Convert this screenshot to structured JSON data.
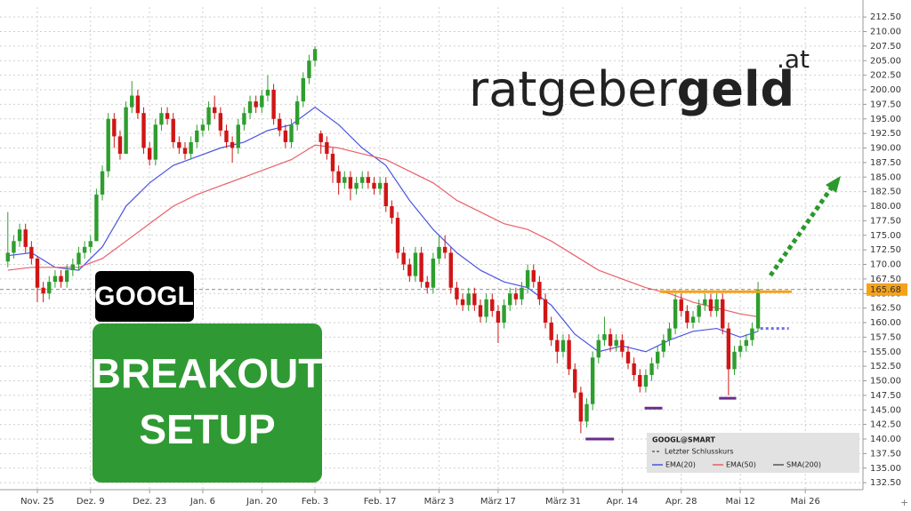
{
  "chart_data": {
    "type": "candlestick",
    "brand": {
      "name_light": "ratgeber",
      "name_bold": "geld",
      "suffix": ".at"
    },
    "ticker_badge": "GOOGL",
    "setup_badge": [
      "BREAKOUT",
      "SETUP"
    ],
    "legend": {
      "title": "GOOGL@SMART",
      "last_close_label": "Letzter Schlusskurs"
    },
    "last_close": 165.68,
    "up_color": "#2e9e2e",
    "down_color": "#d01515",
    "grid": true,
    "categories": [
      null,
      null,
      null,
      null,
      null,
      "Nov. 25",
      null,
      null,
      null,
      null,
      null,
      null,
      null,
      null,
      "Dez. 9",
      null,
      null,
      null,
      null,
      null,
      null,
      null,
      null,
      null,
      "Dez. 23",
      null,
      null,
      null,
      null,
      null,
      null,
      null,
      null,
      "Jan. 6",
      null,
      null,
      null,
      null,
      null,
      null,
      null,
      null,
      null,
      "Jan. 20",
      null,
      null,
      null,
      null,
      null,
      null,
      null,
      null,
      "Feb. 3",
      null,
      null,
      null,
      null,
      null,
      null,
      null,
      null,
      null,
      null,
      "Feb. 17",
      null,
      null,
      null,
      null,
      null,
      null,
      null,
      null,
      null,
      "März 3",
      null,
      null,
      null,
      null,
      null,
      null,
      null,
      null,
      null,
      "März 17",
      null,
      null,
      null,
      null,
      null,
      null,
      null,
      null,
      null,
      null,
      "März 31",
      null,
      null,
      null,
      null,
      null,
      null,
      null,
      null,
      null,
      "Apr. 14",
      null,
      null,
      null,
      null,
      null,
      null,
      null,
      null,
      null,
      "Apr. 28",
      null,
      null,
      null,
      null,
      null,
      null,
      null,
      null,
      null,
      "Mai 12",
      null,
      null,
      null,
      null,
      null,
      null,
      null,
      null,
      null,
      null,
      "Mai 26",
      null,
      null,
      null,
      null,
      null,
      null,
      null,
      null,
      null
    ],
    "ohlc": [
      [
        170.5,
        179,
        169.5,
        172
      ],
      [
        172,
        175,
        171,
        174
      ],
      [
        174,
        177,
        173,
        176
      ],
      [
        176,
        177,
        172,
        173
      ],
      [
        173,
        174,
        170,
        171
      ],
      [
        171,
        171.5,
        163.5,
        166
      ],
      [
        166,
        167,
        163.5,
        165
      ],
      [
        165,
        168,
        164,
        167
      ],
      [
        167,
        169,
        166,
        168
      ],
      [
        168,
        169,
        166,
        167
      ],
      [
        167,
        170,
        166,
        169
      ],
      [
        169,
        171,
        168,
        170
      ],
      [
        170,
        173,
        169,
        172
      ],
      [
        172,
        174,
        171,
        173
      ],
      [
        173,
        175,
        172,
        174
      ],
      [
        174,
        183,
        174,
        182
      ],
      [
        182,
        187,
        181,
        186
      ],
      [
        186,
        196,
        185,
        195
      ],
      [
        195,
        196,
        190,
        192
      ],
      [
        192,
        193,
        188,
        189
      ],
      [
        189,
        198,
        189,
        197
      ],
      [
        197,
        201.5,
        196,
        199
      ],
      [
        199,
        200,
        195,
        196
      ],
      [
        196,
        197,
        189,
        190
      ],
      [
        190,
        191,
        187,
        188
      ],
      [
        188,
        195,
        187,
        194
      ],
      [
        194,
        197,
        193,
        196
      ],
      [
        196,
        197,
        194,
        195
      ],
      [
        195,
        196,
        190,
        191
      ],
      [
        191,
        192,
        189,
        190
      ],
      [
        190,
        191,
        188,
        189
      ],
      [
        189,
        192,
        188,
        191
      ],
      [
        191,
        194,
        190,
        193
      ],
      [
        193,
        195,
        192,
        194
      ],
      [
        194,
        198,
        193,
        197
      ],
      [
        197,
        199,
        195,
        196
      ],
      [
        196,
        197,
        192,
        193
      ],
      [
        193,
        194,
        190,
        191
      ],
      [
        191,
        192,
        187.5,
        190
      ],
      [
        190,
        195,
        189,
        194
      ],
      [
        194,
        197,
        193,
        196
      ],
      [
        196,
        199,
        195,
        198
      ],
      [
        198,
        199,
        196,
        197
      ],
      [
        197,
        200,
        196,
        199
      ],
      [
        199,
        202.5,
        198,
        200
      ],
      [
        200,
        201,
        194,
        195
      ],
      [
        195,
        196,
        192,
        193
      ],
      [
        193,
        194,
        190,
        191
      ],
      [
        191,
        195,
        190,
        194
      ],
      [
        194,
        199,
        193,
        198
      ],
      [
        198,
        203,
        197,
        202
      ],
      [
        202,
        206,
        201,
        205
      ],
      [
        205,
        207.5,
        204,
        207
      ],
      [
        192.5,
        193,
        189,
        191
      ],
      [
        191,
        192,
        188,
        189
      ],
      [
        189,
        190,
        184,
        186
      ],
      [
        186,
        187,
        182,
        184
      ],
      [
        184,
        186,
        183,
        185
      ],
      [
        185,
        186,
        181,
        183
      ],
      [
        183,
        185,
        182,
        184
      ],
      [
        184,
        186,
        183,
        185
      ],
      [
        185,
        186,
        183,
        184
      ],
      [
        184,
        185,
        182,
        183
      ],
      [
        183,
        185,
        182,
        184
      ],
      [
        184,
        185,
        179,
        180
      ],
      [
        180,
        181,
        177,
        178
      ],
      [
        178,
        179,
        171,
        172
      ],
      [
        172,
        173,
        169,
        170
      ],
      [
        170,
        171,
        167,
        168
      ],
      [
        168,
        173,
        167,
        172
      ],
      [
        172,
        173,
        166,
        167
      ],
      [
        167,
        168,
        165,
        166
      ],
      [
        166,
        172,
        165,
        171
      ],
      [
        171,
        175,
        170,
        173
      ],
      [
        173,
        175,
        171,
        172
      ],
      [
        172,
        173,
        165,
        166
      ],
      [
        166,
        167,
        163,
        164
      ],
      [
        164,
        165,
        162,
        163
      ],
      [
        163,
        166,
        162,
        165
      ],
      [
        165,
        166,
        162,
        163
      ],
      [
        163,
        164,
        160,
        161
      ],
      [
        161,
        165,
        160,
        164
      ],
      [
        164,
        165,
        161,
        162
      ],
      [
        162,
        163,
        156.5,
        160
      ],
      [
        160,
        164,
        159,
        163
      ],
      [
        163,
        166,
        162,
        165
      ],
      [
        165,
        166,
        163,
        164
      ],
      [
        164,
        167,
        163,
        166
      ],
      [
        166,
        170,
        165,
        169
      ],
      [
        169,
        170,
        166,
        167
      ],
      [
        167,
        168,
        163,
        164
      ],
      [
        164,
        165,
        159,
        160
      ],
      [
        160,
        161,
        156,
        157
      ],
      [
        157,
        158,
        153,
        155
      ],
      [
        155,
        158,
        154,
        157
      ],
      [
        157,
        158,
        151,
        152
      ],
      [
        152,
        153,
        147,
        148
      ],
      [
        148,
        149,
        141,
        143
      ],
      [
        143,
        147,
        142,
        146
      ],
      [
        146,
        155,
        145,
        154
      ],
      [
        154,
        158,
        153,
        157
      ],
      [
        157,
        161,
        156,
        158
      ],
      [
        158,
        159,
        155,
        156
      ],
      [
        156,
        158,
        155,
        157
      ],
      [
        157,
        158,
        154,
        155
      ],
      [
        155,
        156,
        152,
        153
      ],
      [
        153,
        154,
        150,
        151
      ],
      [
        151,
        152,
        148,
        149
      ],
      [
        149,
        152,
        148,
        151
      ],
      [
        151,
        154,
        150,
        153
      ],
      [
        153,
        156,
        152,
        155
      ],
      [
        155,
        158,
        154,
        157
      ],
      [
        157,
        160,
        156,
        159
      ],
      [
        159,
        165,
        158,
        164
      ],
      [
        164,
        165,
        161,
        162
      ],
      [
        162,
        163,
        159,
        160
      ],
      [
        160,
        162,
        159,
        161
      ],
      [
        161,
        164,
        160,
        163
      ],
      [
        163,
        165,
        162,
        164
      ],
      [
        164,
        165,
        161,
        162
      ],
      [
        162,
        165,
        161,
        164
      ],
      [
        164,
        165,
        158,
        159
      ],
      [
        159,
        160,
        147.5,
        152
      ],
      [
        152,
        156,
        151,
        155
      ],
      [
        155,
        157,
        154,
        156
      ],
      [
        156,
        158,
        155,
        157
      ],
      [
        157,
        160,
        156,
        159
      ],
      [
        159,
        167,
        158.5,
        165.68
      ],
      null,
      null,
      null,
      null,
      null,
      null,
      null,
      null,
      null,
      null,
      null,
      null,
      null,
      null,
      null,
      null,
      null
    ],
    "series": [
      {
        "name": "EMA(20)",
        "color": "#4a55e0",
        "x": [
          0,
          4,
          8,
          12,
          16,
          20,
          24,
          28,
          32,
          36,
          40,
          44,
          48,
          52,
          56,
          60,
          64,
          68,
          72,
          76,
          80,
          84,
          88,
          92,
          96,
          100,
          104,
          108,
          112,
          116,
          120,
          124,
          127
        ],
        "values": [
          171.5,
          172,
          169.5,
          169,
          173,
          180,
          184,
          187,
          188.5,
          190,
          191,
          193,
          194,
          197,
          194,
          190,
          187,
          181,
          176,
          172,
          169,
          167,
          166,
          163,
          158,
          155,
          156,
          155,
          157,
          158.5,
          159,
          157.5,
          158.5
        ]
      },
      {
        "name": "EMA(50)",
        "color": "#e8606a",
        "x": [
          0,
          4,
          8,
          12,
          16,
          20,
          24,
          28,
          32,
          36,
          40,
          44,
          48,
          52,
          56,
          60,
          64,
          68,
          72,
          76,
          80,
          84,
          88,
          92,
          96,
          100,
          104,
          108,
          112,
          116,
          120,
          124,
          127
        ],
        "values": [
          169,
          169.5,
          169.5,
          169.5,
          171,
          174,
          177,
          180,
          182,
          183.5,
          185,
          186.5,
          188,
          190.5,
          190,
          189,
          188,
          186,
          184,
          181,
          179,
          177,
          176,
          174,
          171.5,
          169,
          167.5,
          166,
          165,
          163.5,
          162.5,
          161.5,
          161
        ]
      },
      {
        "name": "SMA(200)",
        "color": "#555555",
        "x": [],
        "values": []
      }
    ],
    "levels": [
      {
        "value": 165.3,
        "color": "#f5a21b",
        "start": 110.4,
        "end": 132.7,
        "style": "solid"
      },
      {
        "value": 159,
        "color": "#6b6bf0",
        "start": 127.4,
        "end": 132.2,
        "style": "dotted"
      },
      {
        "value": 140,
        "color": "#6a2c8c",
        "start": 97.8,
        "end": 102.6,
        "style": "solid"
      },
      {
        "value": 145.3,
        "color": "#6a2c8c",
        "start": 107.8,
        "end": 110.8,
        "style": "solid"
      },
      {
        "value": 147,
        "color": "#6a2c8c",
        "start": 120.4,
        "end": 123.3,
        "style": "solid"
      }
    ],
    "ylim": [
      131.3,
      214.2
    ],
    "yticks": [
      {
        "value": 132.5,
        "label": "132.50"
      },
      {
        "value": 135,
        "label": "135.00"
      },
      {
        "value": 137.5,
        "label": "137.50"
      },
      {
        "value": 140,
        "label": "140.00"
      },
      {
        "value": 142.5,
        "label": "142.50"
      },
      {
        "value": 145,
        "label": "145.00"
      },
      {
        "value": 147.5,
        "label": "147.50"
      },
      {
        "value": 150,
        "label": "150.00"
      },
      {
        "value": 152.5,
        "label": "152.50"
      },
      {
        "value": 155,
        "label": "155.00"
      },
      {
        "value": 157.5,
        "label": "157.50"
      },
      {
        "value": 160,
        "label": "160.00"
      },
      {
        "value": 162.5,
        "label": "162.50"
      },
      {
        "value": 165,
        "label": "165.00"
      },
      {
        "value": 167.5,
        "label": "167.50"
      },
      {
        "value": 170,
        "label": "170.00"
      },
      {
        "value": 172.5,
        "label": "172.50"
      },
      {
        "value": 175,
        "label": "175.00"
      },
      {
        "value": 177.5,
        "label": "177.50"
      },
      {
        "value": 180,
        "label": "180.00"
      },
      {
        "value": 182.5,
        "label": "182.50"
      },
      {
        "value": 185,
        "label": "185.00"
      },
      {
        "value": 187.5,
        "label": "187.50"
      },
      {
        "value": 190,
        "label": "190.00"
      },
      {
        "value": 192.5,
        "label": "192.50"
      },
      {
        "value": 195,
        "label": "195.00"
      },
      {
        "value": 197.5,
        "label": "197.50"
      },
      {
        "value": 200,
        "label": "200.00"
      },
      {
        "value": 202.5,
        "label": "202.50"
      },
      {
        "value": 205,
        "label": "205.00"
      },
      {
        "value": 207.5,
        "label": "207.50"
      },
      {
        "value": 210,
        "label": "210.00"
      },
      {
        "value": 212.5,
        "label": "212.50"
      }
    ]
  }
}
